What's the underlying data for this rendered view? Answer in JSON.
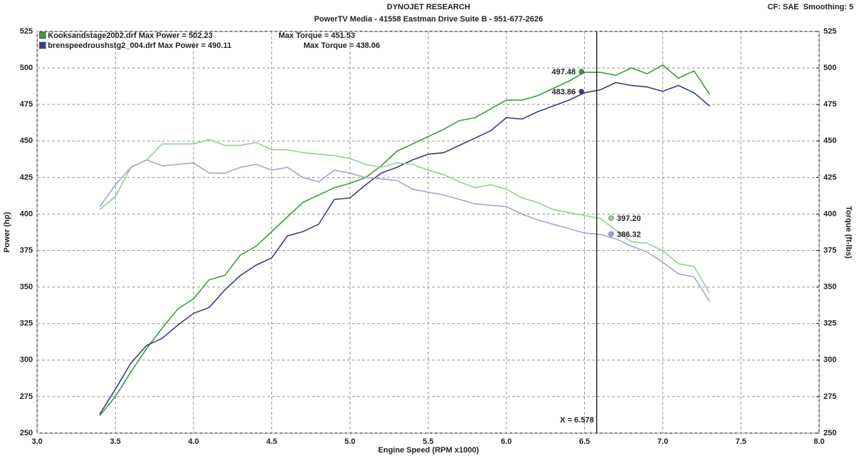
{
  "chart_data": {
    "type": "line",
    "title": "DYNOJET RESEARCH",
    "subtitle": "PowerTV Media - 41558 Eastman Drive Suite B - 951-677-2626",
    "settings_text": "CF: SAE  Smoothing: 5",
    "x_label": "Engine Speed (RPM x1000)",
    "y_label": "Power (hp)",
    "y2_label": "Torque (ft-lbs)",
    "xlim": [
      3.0,
      8.0
    ],
    "xticks": [
      {
        "value": 3,
        "label": "3.0"
      },
      {
        "value": 3.5,
        "label": "3.5"
      },
      {
        "value": 4,
        "label": "4.0"
      },
      {
        "value": 4.5,
        "label": "4.5"
      },
      {
        "value": 5,
        "label": "5.0"
      },
      {
        "value": 5.5,
        "label": "5.5"
      },
      {
        "value": 6,
        "label": "6.0"
      },
      {
        "value": 6.5,
        "label": "6.5"
      },
      {
        "value": 7,
        "label": "7.0"
      },
      {
        "value": 7.5,
        "label": "7.5"
      },
      {
        "value": 8,
        "label": "8.0"
      }
    ],
    "ylim": [
      250,
      525
    ],
    "yticks": [
      250,
      275,
      300,
      325,
      350,
      375,
      400,
      425,
      450,
      475,
      500,
      525
    ],
    "y2lim": [
      250,
      525
    ],
    "y2ticks": [
      250,
      275,
      300,
      325,
      350,
      375,
      400,
      425,
      450,
      475,
      500,
      525
    ],
    "grid": true,
    "x": [
      3.4,
      3.5,
      3.6,
      3.7,
      3.8,
      3.9,
      4.0,
      4.1,
      4.2,
      4.3,
      4.4,
      4.5,
      4.6,
      4.7,
      4.8,
      4.9,
      5.0,
      5.1,
      5.2,
      5.3,
      5.4,
      5.5,
      5.6,
      5.7,
      5.8,
      5.9,
      6.0,
      6.1,
      6.2,
      6.3,
      6.4,
      6.5,
      6.6,
      6.7,
      6.8,
      6.9,
      7.0,
      7.1,
      7.2,
      7.3
    ],
    "series": [
      {
        "name": "Kooksandstage2002.drf Max Power = 502.23",
        "color": "#3f9a3f",
        "axis": "y",
        "values": [
          262,
          275,
          292,
          308,
          322,
          335,
          342,
          355,
          358,
          372,
          378,
          388,
          398,
          408,
          413,
          418,
          421,
          425,
          433,
          443,
          448,
          453,
          458,
          464,
          466,
          472,
          478,
          478,
          481,
          486,
          491,
          497,
          497,
          495,
          500,
          496,
          502,
          493,
          498,
          482
        ]
      },
      {
        "name": "brenspeedroushstg2_004.drf Max Power = 490.11",
        "color": "#3c3c86",
        "axis": "y",
        "values": [
          263,
          280,
          298,
          310,
          315,
          324,
          332,
          336,
          348,
          358,
          365,
          370,
          385,
          388,
          393,
          410,
          411,
          420,
          428,
          432,
          437,
          441,
          442,
          447,
          452,
          457,
          466,
          465,
          470,
          474,
          478,
          483,
          485,
          490,
          488,
          487,
          484,
          488,
          483,
          474
        ]
      },
      {
        "name": "Max Torque = 451.53",
        "color": "#92d092",
        "axis": "y2",
        "values": [
          403,
          412,
          432,
          437,
          448,
          448,
          448,
          451,
          447,
          447,
          449,
          444,
          444,
          442,
          441,
          440,
          438,
          434,
          432,
          435,
          434,
          430,
          427,
          422,
          418,
          420,
          417,
          411,
          408,
          403,
          401,
          399,
          397,
          389,
          381,
          380,
          375,
          366,
          364,
          346
        ]
      },
      {
        "name": "Max Torque = 438.06",
        "color": "#a4a4d4",
        "axis": "y2",
        "values": [
          405,
          420,
          432,
          437,
          433,
          434,
          435,
          428,
          428,
          432,
          434,
          430,
          432,
          425,
          422,
          430,
          428,
          425,
          424,
          423,
          417,
          415,
          413,
          410,
          407,
          406,
          405,
          400,
          396,
          393,
          390,
          387,
          386,
          383,
          378,
          374,
          367,
          359,
          357,
          340
        ]
      }
    ],
    "annotations": [
      {
        "x": 6.48,
        "y": 497.48,
        "label": "497.48",
        "color": "#3f9a3f"
      },
      {
        "x": 6.48,
        "y": 483.86,
        "label": "483.86",
        "color": "#3c3c86"
      },
      {
        "x": 6.67,
        "y": 397.2,
        "label": "397.20",
        "color": "#92d092"
      },
      {
        "x": 6.67,
        "y": 386.32,
        "label": "386.32",
        "color": "#a4a4d4"
      }
    ],
    "cursor": {
      "x": 6.578,
      "label": "X = 6.578"
    }
  }
}
